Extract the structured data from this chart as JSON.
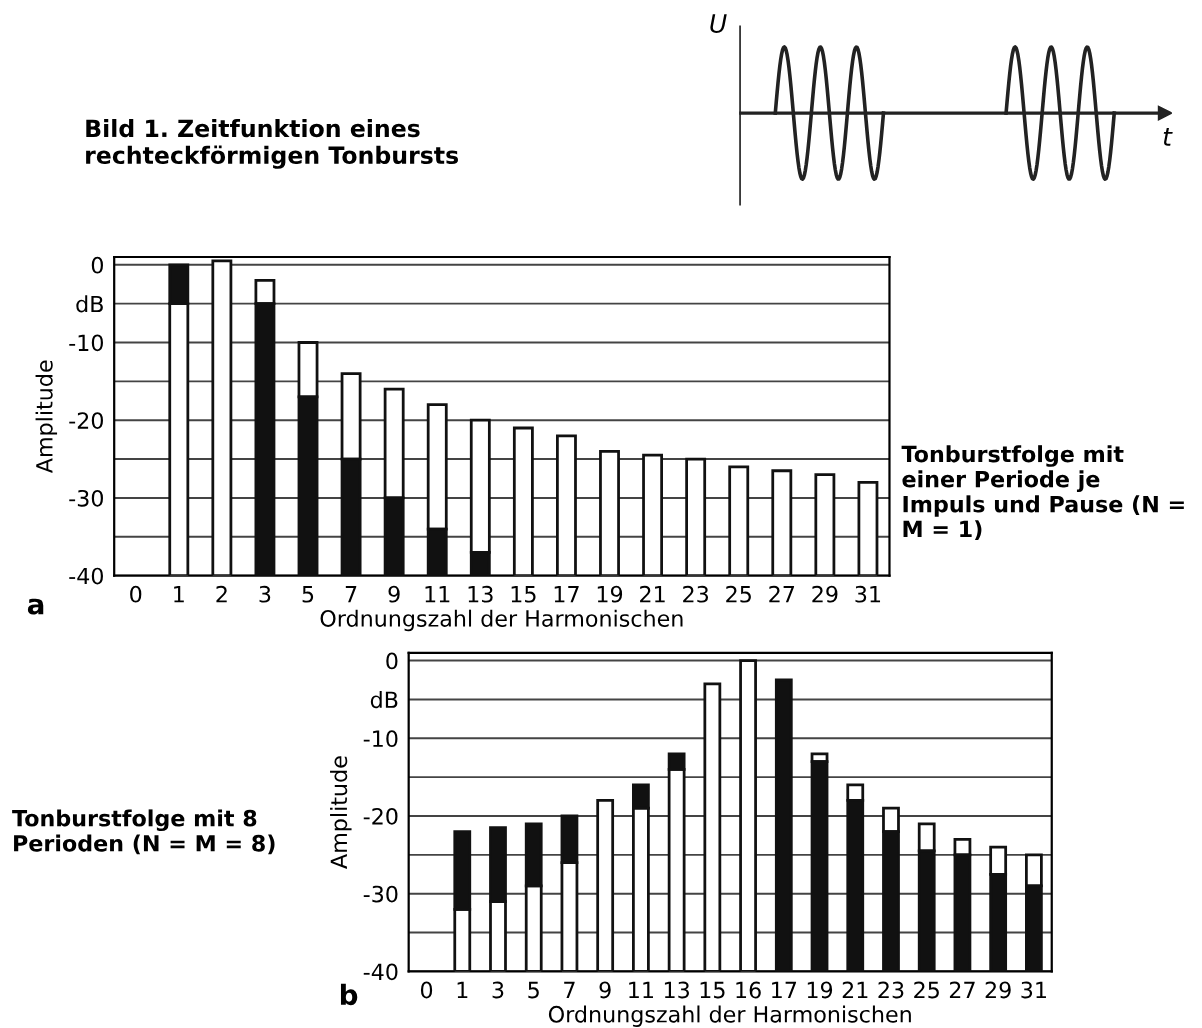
{
  "chart_data": [
    {
      "type": "other",
      "annotations": [
        "Bild 1. Zeitfunktion eines rechteckförmigen Tonbursts",
        "U",
        "t"
      ]
    },
    {
      "type": "bar",
      "ylabel": "Amplitude",
      "xlabel": "Ordnungszahl der Harmonischen",
      "ylim": [
        -40,
        1
      ],
      "yticks": [
        0,
        {
          "value": -5,
          "label": "dB"
        },
        -10,
        {
          "value": -15,
          "label": null
        },
        -20,
        {
          "value": -25,
          "label": null
        },
        -30,
        {
          "value": -35,
          "label": null
        },
        -40
      ],
      "grid": "y",
      "annotations": [
        "Tonburstfolge mit einer Periode je Impuls und Pause (N = M = 1)",
        "a"
      ],
      "categories": [
        "0",
        "1",
        "2",
        "3",
        "5",
        "7",
        "9",
        "11",
        "13",
        "15",
        "17",
        "19",
        "21",
        "23",
        "25",
        "27",
        "29",
        "31"
      ],
      "series": [
        {
          "color": "#ffffff",
          "base": [
            null,
            -40,
            -40,
            -5,
            -17,
            -25,
            -30,
            -34,
            -37,
            -40,
            -40,
            -40,
            -40,
            -40,
            -40,
            -40,
            -40,
            -40
          ],
          "values": [
            null,
            35,
            40.5,
            3,
            7,
            11,
            14,
            16,
            17,
            19,
            18,
            16,
            15.5,
            15,
            14,
            13.5,
            13,
            12
          ]
        },
        {
          "color": "#111111",
          "base": [
            null,
            -5,
            null,
            -40,
            -40,
            -40,
            -40,
            -40,
            -40,
            null,
            null,
            null,
            null,
            null,
            null,
            null,
            null,
            null
          ],
          "values": [
            null,
            5,
            null,
            35,
            23,
            15,
            10,
            6,
            3,
            null,
            null,
            null,
            null,
            null,
            null,
            null,
            null,
            null
          ]
        }
      ]
    },
    {
      "type": "bar",
      "ylabel": "Amplitude",
      "xlabel": "Ordnungszahl der Harmonischen",
      "ylim": [
        -40,
        1
      ],
      "yticks": [
        0,
        {
          "value": -5,
          "label": "dB"
        },
        -10,
        {
          "value": -15,
          "label": null
        },
        -20,
        {
          "value": -25,
          "label": null
        },
        -30,
        {
          "value": -35,
          "label": null
        },
        -40
      ],
      "grid": "y",
      "annotations": [
        "Tonburstfolge mit 8 Perioden (N = M = 8)",
        "b"
      ],
      "categories": [
        "0",
        "1",
        "3",
        "5",
        "7",
        "9",
        "11",
        "13",
        "15",
        "16",
        "17",
        "19",
        "21",
        "23",
        "25",
        "27",
        "29",
        "31"
      ],
      "series": [
        {
          "color": "#ffffff",
          "base": [
            null,
            -40,
            -40,
            -40,
            -40,
            -40,
            -40,
            -40,
            -40,
            -40,
            null,
            -13,
            -18,
            -22,
            -24.5,
            -25,
            -27.5,
            -29
          ],
          "values": [
            null,
            8,
            9,
            11,
            14,
            22,
            21,
            26,
            37,
            40,
            null,
            1,
            2,
            3,
            3.5,
            2,
            3.5,
            4
          ]
        },
        {
          "color": "#111111",
          "base": [
            null,
            -32,
            -31,
            -29,
            -26,
            null,
            -19,
            -14,
            null,
            null,
            -40,
            -40,
            -40,
            -40,
            -40,
            -40,
            -40,
            -40
          ],
          "values": [
            null,
            10,
            9.5,
            8,
            6,
            null,
            3,
            2,
            null,
            null,
            37.5,
            27,
            22,
            18,
            15.5,
            15,
            12.5,
            11
          ]
        }
      ]
    }
  ]
}
